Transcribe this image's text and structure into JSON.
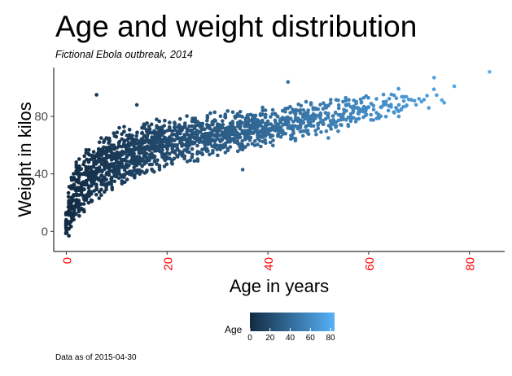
{
  "chart_data": {
    "type": "scatter",
    "title": "Age and weight distribution",
    "subtitle": "Fictional Ebola outbreak, 2014",
    "xlabel": "Age in years",
    "ylabel": "Weight in kilos",
    "caption": "Data as of 2015-04-30",
    "xlim": [
      -2.5,
      87
    ],
    "ylim": [
      -14,
      114
    ],
    "x_ticks": [
      0,
      20,
      40,
      60,
      80
    ],
    "x_tick_labels": [
      "0",
      "20",
      "40",
      "60",
      "80"
    ],
    "y_ticks": [
      0,
      40,
      80
    ],
    "y_tick_labels": [
      "0",
      "40",
      "80"
    ],
    "grid": false,
    "color_by": "age",
    "colors": {
      "low": "#132b43",
      "high": "#56b1f7",
      "x_tick_label": "#ff0000",
      "y_tick_label": "#4d4d4d"
    },
    "legend": {
      "title": "Age",
      "position": "bottom",
      "breaks": [
        0,
        20,
        40,
        60,
        80
      ],
      "labels": [
        "0",
        "20",
        "40",
        "60",
        "80"
      ],
      "range": [
        0,
        84
      ]
    },
    "trend": [
      {
        "age": 0,
        "weight_min": -10,
        "weight_max": 22
      },
      {
        "age": 1,
        "weight_min": 0,
        "weight_max": 44
      },
      {
        "age": 2,
        "weight_min": 5,
        "weight_max": 52
      },
      {
        "age": 4,
        "weight_min": 12,
        "weight_max": 60
      },
      {
        "age": 6,
        "weight_min": 20,
        "weight_max": 66
      },
      {
        "age": 10,
        "weight_min": 30,
        "weight_max": 73
      },
      {
        "age": 14,
        "weight_min": 35,
        "weight_max": 78
      },
      {
        "age": 20,
        "weight_min": 43,
        "weight_max": 80
      },
      {
        "age": 30,
        "weight_min": 52,
        "weight_max": 84
      },
      {
        "age": 40,
        "weight_min": 58,
        "weight_max": 88
      },
      {
        "age": 50,
        "weight_min": 65,
        "weight_max": 93
      },
      {
        "age": 60,
        "weight_min": 73,
        "weight_max": 98
      },
      {
        "age": 70,
        "weight_min": 80,
        "weight_max": 102
      }
    ],
    "highlighted_points": [
      {
        "age": 6,
        "weight": 95
      },
      {
        "age": 14,
        "weight": 88
      },
      {
        "age": 44,
        "weight": 104
      },
      {
        "age": 35,
        "weight": 43
      },
      {
        "age": 52,
        "weight": 65
      },
      {
        "age": 66,
        "weight": 88
      },
      {
        "age": 73,
        "weight": 107
      },
      {
        "age": 77,
        "weight": 101
      },
      {
        "age": 84,
        "weight": 111
      }
    ]
  }
}
